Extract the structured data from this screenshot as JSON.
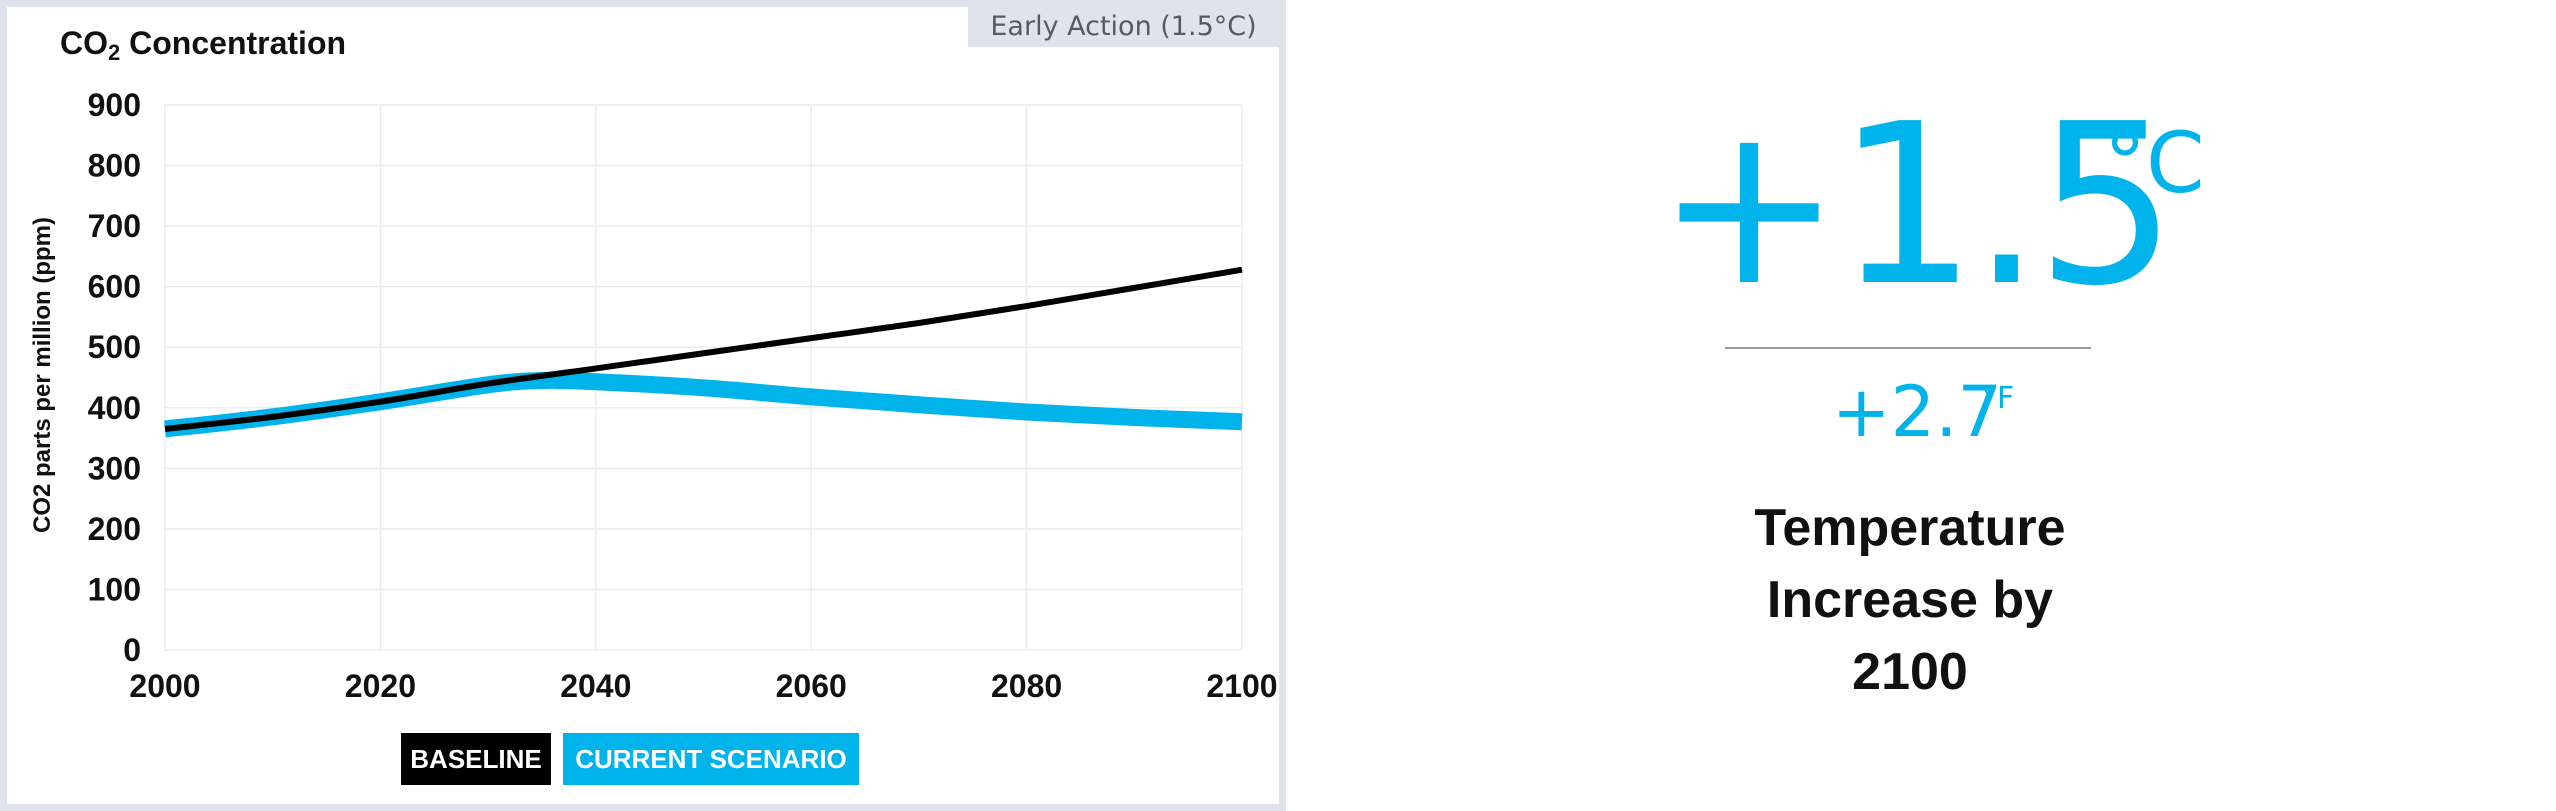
{
  "chart_panel": {
    "title_main": "CO",
    "title_sub": "2",
    "title_rest": " Concentration",
    "scenario_tag": "Early Action (1.5°C)"
  },
  "chart_data": {
    "type": "line",
    "title": "CO2 Concentration",
    "ylabel": "CO2 parts per million (ppm)",
    "xlabel": "",
    "xlim": [
      2000,
      2100
    ],
    "ylim": [
      0,
      900
    ],
    "x_ticks": [
      2000,
      2020,
      2040,
      2060,
      2080,
      2100
    ],
    "y_ticks": [
      0,
      100,
      200,
      300,
      400,
      500,
      600,
      700,
      800,
      900
    ],
    "grid": true,
    "legend_position": "bottom",
    "series": [
      {
        "name": "BASELINE",
        "color": "#000000",
        "x": [
          2000,
          2010,
          2020,
          2030,
          2040,
          2050,
          2060,
          2070,
          2080,
          2090,
          2100
        ],
        "y": [
          365,
          385,
          410,
          440,
          465,
          490,
          515,
          540,
          568,
          598,
          628
        ]
      },
      {
        "name": "CURRENT SCENARIO",
        "color": "#00b3ea",
        "x": [
          2000,
          2010,
          2020,
          2030,
          2035,
          2040,
          2050,
          2060,
          2070,
          2080,
          2090,
          2100
        ],
        "y": [
          365,
          385,
          410,
          438,
          445,
          443,
          433,
          418,
          405,
          393,
          384,
          377
        ]
      }
    ]
  },
  "legend": {
    "baseline": "BASELINE",
    "current": "CURRENT SCENARIO"
  },
  "temperature": {
    "celsius_value": "+1.5",
    "celsius_unit": "°C",
    "fahrenheit_value": "+2.7",
    "fahrenheit_unit": "°F",
    "caption_line1": "Temperature",
    "caption_line2": "Increase by",
    "caption_line3": "2100",
    "accent_color": "#00b3ea"
  }
}
